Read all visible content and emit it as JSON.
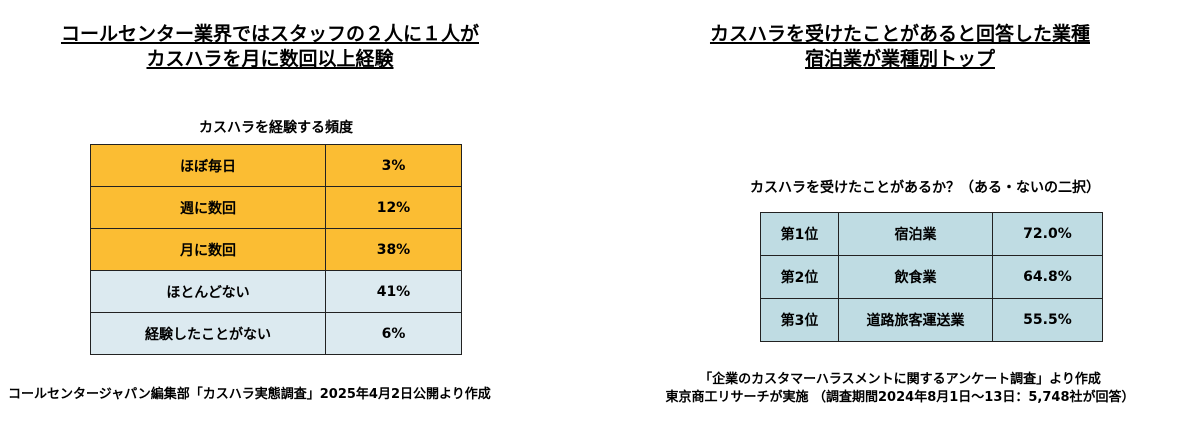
{
  "left": {
    "headline_line1": "コールセンター業界ではスタッフの２人に１人が",
    "headline_line2": "カスハラを月に数回以上経験",
    "table_caption": "カスハラを経験する頻度",
    "rows": [
      {
        "label": "ほぼ毎日",
        "value": "3%"
      },
      {
        "label": "週に数回",
        "value": "12%"
      },
      {
        "label": "月に数回",
        "value": "38%"
      },
      {
        "label": "ほとんどない",
        "value": "41%"
      },
      {
        "label": "経験したことがない",
        "value": "6%"
      }
    ],
    "source": "コールセンタージャパン編集部「カスハラ実態調査」2025年4月2日公開より作成"
  },
  "right": {
    "headline_line1": "カスハラを受けたことがあると回答した業種",
    "headline_line2": "宿泊業が業種別トップ",
    "table_caption": "カスハラを受けたことがあるか？（ある・ないの二択）",
    "rows": [
      {
        "rank": "第1位",
        "industry": "宿泊業",
        "percent": "72.0%"
      },
      {
        "rank": "第2位",
        "industry": "飲食業",
        "percent": "64.8%"
      },
      {
        "rank": "第3位",
        "industry": "道路旅客運送業",
        "percent": "55.5%"
      }
    ],
    "source_line1": "「企業のカスタマーハラスメントに関するアンケート調査」より作成",
    "source_line2": "東京商工リサーチが実施 （調査期間2024年8月1日～13日：5,748社が回答）"
  },
  "colors": {
    "highlight_rows": "#fbbd33",
    "normal_rows": "#dceaf0",
    "ranking_cells": "#bfdce3"
  },
  "chart_data": [
    {
      "type": "table",
      "title": "カスハラを経験する頻度",
      "columns": [],
      "rows": [
        [
          "ほぼ毎日",
          "3%"
        ],
        [
          "週に数回",
          "12%"
        ],
        [
          "月に数回",
          "38%"
        ],
        [
          "ほとんどない",
          "41%"
        ],
        [
          "経験したことがない",
          "6%"
        ]
      ]
    },
    {
      "type": "table",
      "title": "カスハラを受けたことがあるか？（ある・ないの二択）",
      "columns": [],
      "rows": [
        [
          "第1位",
          "宿泊業",
          "72.0%"
        ],
        [
          "第2位",
          "飲食業",
          "64.8%"
        ],
        [
          "第3位",
          "道路旅客運送業",
          "55.5%"
        ]
      ]
    }
  ]
}
